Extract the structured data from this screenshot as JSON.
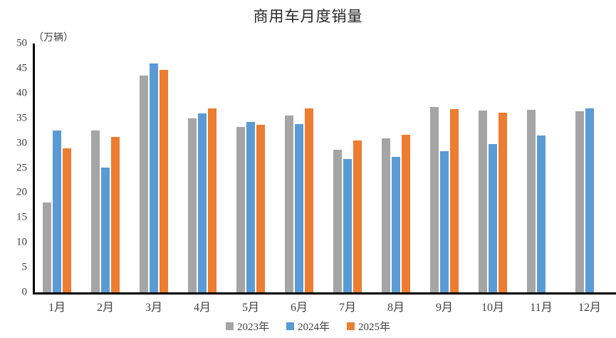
{
  "title": "商用车月度销量",
  "unit_label": "（万辆）",
  "chart_data": {
    "type": "bar",
    "title": "商用车月度销量",
    "ylabel": "（万辆）",
    "xlabel": "",
    "ylim": [
      0,
      50
    ],
    "yticks": [
      0,
      5,
      10,
      15,
      20,
      25,
      30,
      35,
      40,
      45,
      50
    ],
    "grid": false,
    "legend_position": "bottom",
    "categories": [
      "1月",
      "2月",
      "3月",
      "4月",
      "5月",
      "6月",
      "7月",
      "8月",
      "9月",
      "10月",
      "11月",
      "12月"
    ],
    "series": [
      {
        "name": "2023年",
        "color": "#A5A5A5",
        "values": [
          18.0,
          32.5,
          43.5,
          35.0,
          33.2,
          35.6,
          28.7,
          31.0,
          37.3,
          36.5,
          36.7,
          36.4
        ]
      },
      {
        "name": "2024年",
        "color": "#5B9BD5",
        "values": [
          32.5,
          25.1,
          46.0,
          35.9,
          34.2,
          33.8,
          26.8,
          27.2,
          28.4,
          29.8,
          31.5,
          37.0
        ]
      },
      {
        "name": "2025年",
        "color": "#ED7D31",
        "values": [
          29.0,
          31.2,
          44.7,
          36.9,
          33.6,
          37.0,
          30.5,
          31.7,
          36.8,
          36.1,
          null,
          null
        ]
      }
    ]
  },
  "colors": {
    "axis": "#000000",
    "text": "#404040",
    "title_text": "#262626",
    "background": "#FFFFFF"
  }
}
